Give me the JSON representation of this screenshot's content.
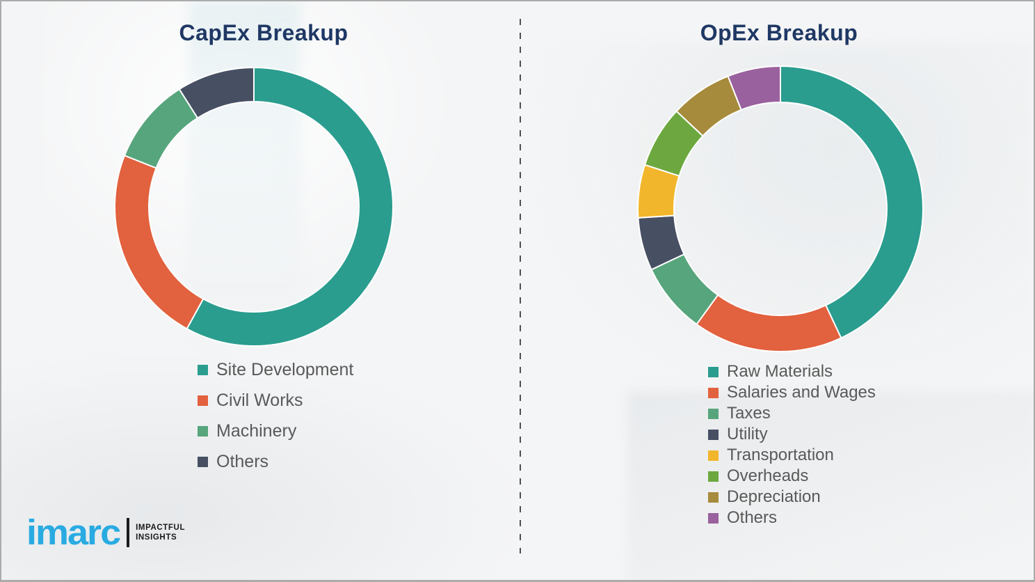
{
  "styles": {
    "title_color": "#1F3864",
    "legend_text_color": "#595959",
    "background": "#F4F5F6",
    "divider_color": "#4F4F4F",
    "border_color": "#ABABAB"
  },
  "chart_data": [
    {
      "type": "pie",
      "donut": true,
      "title": "CapEx Breakup",
      "labels": [
        "Site Development",
        "Civil Works",
        "Machinery",
        "Others"
      ],
      "values": [
        58,
        23,
        10,
        9
      ],
      "colors": [
        "#2A9D8F",
        "#E2613E",
        "#57A57C",
        "#474F63"
      ],
      "start_angle_deg": 0,
      "direction": "clockwise",
      "legend_position": "below-left",
      "data_labels": "none"
    },
    {
      "type": "pie",
      "donut": true,
      "title": "OpEx Breakup",
      "labels": [
        "Raw Materials",
        "Salaries and Wages",
        "Taxes",
        "Utility",
        "Transportation",
        "Overheads",
        "Depreciation",
        "Others"
      ],
      "values": [
        43,
        17,
        8,
        6,
        6,
        7,
        7,
        6
      ],
      "colors": [
        "#2A9D8F",
        "#E2613E",
        "#57A57C",
        "#474F63",
        "#F2B62C",
        "#6CA83F",
        "#A68B3C",
        "#99619E"
      ],
      "start_angle_deg": 0,
      "direction": "clockwise",
      "legend_position": "below-left",
      "data_labels": "none"
    }
  ],
  "logo": {
    "brand": "imarc",
    "tagline_line1": "IMPACTFUL",
    "tagline_line2": "INSIGHTS",
    "brand_color": "#29ABE2",
    "tagline_color": "#1A1A1A"
  }
}
